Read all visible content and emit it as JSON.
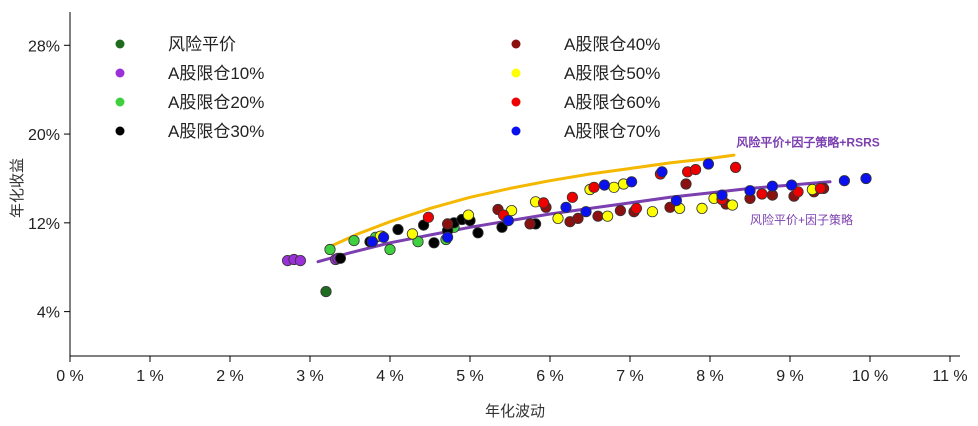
{
  "chart_data": {
    "type": "scatter",
    "xlabel": "年化波动",
    "ylabel": "年化收益",
    "xlim": [
      0,
      11
    ],
    "ylim": [
      0,
      31
    ],
    "x_ticks": [
      0,
      1,
      2,
      3,
      4,
      5,
      6,
      7,
      8,
      9,
      10,
      11
    ],
    "x_tick_labels": [
      "0 %",
      "1 %",
      "2 %",
      "3 %",
      "4 %",
      "5 %",
      "6 %",
      "7 %",
      "8 %",
      "9 %",
      "10 %",
      "11 %"
    ],
    "y_ticks": [
      4,
      12,
      20,
      28
    ],
    "y_tick_labels": [
      "4%",
      "12%",
      "20%",
      "28%"
    ],
    "legend_position": "top",
    "series": [
      {
        "name": "风险平价",
        "color": "#1f6b1f",
        "points": [
          [
            3.2,
            5.8
          ]
        ]
      },
      {
        "name": "A股限仓10%",
        "color": "#9b30d9",
        "points": [
          [
            2.72,
            8.6
          ],
          [
            2.8,
            8.7
          ],
          [
            2.88,
            8.6
          ],
          [
            3.32,
            8.7
          ],
          [
            3.35,
            8.8
          ]
        ]
      },
      {
        "name": "A股限仓20%",
        "color": "#3fcf3f",
        "points": [
          [
            3.25,
            9.6
          ],
          [
            3.55,
            10.4
          ],
          [
            3.82,
            10.7
          ],
          [
            4.0,
            9.6
          ],
          [
            4.35,
            10.3
          ],
          [
            4.7,
            10.5
          ],
          [
            4.8,
            11.6
          ]
        ]
      },
      {
        "name": "A股限仓30%",
        "color": "#000000",
        "points": [
          [
            3.38,
            8.8
          ],
          [
            3.75,
            10.3
          ],
          [
            3.9,
            10.8
          ],
          [
            4.1,
            11.4
          ],
          [
            4.42,
            11.8
          ],
          [
            4.55,
            10.2
          ],
          [
            4.72,
            11.3
          ],
          [
            4.8,
            12.0
          ],
          [
            4.9,
            12.3
          ],
          [
            5.0,
            12.2
          ],
          [
            5.1,
            11.1
          ],
          [
            5.4,
            11.6
          ],
          [
            5.82,
            11.9
          ]
        ]
      },
      {
        "name": "A股限仓40%",
        "color": "#8b1010",
        "points": [
          [
            4.72,
            11.9
          ],
          [
            5.35,
            13.2
          ],
          [
            5.75,
            11.9
          ],
          [
            5.95,
            13.4
          ],
          [
            6.25,
            12.1
          ],
          [
            6.35,
            12.4
          ],
          [
            6.6,
            12.6
          ],
          [
            6.88,
            13.1
          ],
          [
            7.05,
            13.0
          ],
          [
            7.5,
            13.4
          ],
          [
            7.7,
            15.5
          ],
          [
            8.2,
            13.7
          ],
          [
            8.5,
            14.2
          ],
          [
            8.78,
            14.5
          ],
          [
            9.05,
            14.4
          ],
          [
            9.3,
            14.8
          ],
          [
            9.42,
            15.1
          ]
        ]
      },
      {
        "name": "A股限仓50%",
        "color": "#ffff00",
        "points": [
          [
            3.88,
            10.8
          ],
          [
            4.28,
            11.0
          ],
          [
            4.98,
            12.7
          ],
          [
            5.52,
            13.1
          ],
          [
            5.82,
            13.9
          ],
          [
            6.1,
            12.4
          ],
          [
            6.5,
            15.0
          ],
          [
            6.72,
            12.6
          ],
          [
            6.8,
            15.2
          ],
          [
            6.92,
            15.5
          ],
          [
            7.28,
            13.0
          ],
          [
            7.62,
            13.3
          ],
          [
            7.9,
            13.3
          ],
          [
            8.05,
            14.2
          ],
          [
            8.28,
            13.6
          ],
          [
            9.28,
            15.0
          ]
        ]
      },
      {
        "name": "A股限仓60%",
        "color": "#ee0000",
        "points": [
          [
            4.48,
            12.5
          ],
          [
            5.42,
            12.7
          ],
          [
            5.92,
            13.8
          ],
          [
            6.28,
            14.3
          ],
          [
            6.55,
            15.2
          ],
          [
            7.08,
            13.3
          ],
          [
            7.38,
            16.4
          ],
          [
            7.72,
            16.6
          ],
          [
            7.82,
            16.8
          ],
          [
            8.15,
            14.1
          ],
          [
            8.32,
            17.0
          ],
          [
            8.65,
            14.6
          ],
          [
            9.1,
            14.8
          ],
          [
            9.38,
            15.1
          ]
        ]
      },
      {
        "name": "A股限仓70%",
        "color": "#0a10ee",
        "points": [
          [
            3.78,
            10.3
          ],
          [
            3.92,
            10.7
          ],
          [
            4.72,
            10.7
          ],
          [
            5.48,
            12.2
          ],
          [
            6.2,
            13.4
          ],
          [
            6.45,
            13.0
          ],
          [
            6.68,
            15.4
          ],
          [
            7.02,
            15.7
          ],
          [
            7.4,
            16.6
          ],
          [
            7.58,
            14.0
          ],
          [
            7.98,
            17.3
          ],
          [
            8.15,
            14.5
          ],
          [
            8.5,
            14.9
          ],
          [
            8.78,
            15.3
          ],
          [
            9.02,
            15.4
          ],
          [
            9.68,
            15.8
          ],
          [
            9.95,
            16.0
          ]
        ]
      }
    ],
    "curves": [
      {
        "name": "风险平价+因子策略+RSRS",
        "color": "#f5b800",
        "points": [
          [
            3.2,
            9.7
          ],
          [
            3.6,
            11.0
          ],
          [
            4.0,
            12.1
          ],
          [
            4.5,
            13.3
          ],
          [
            5.0,
            14.3
          ],
          [
            5.5,
            15.1
          ],
          [
            6.0,
            15.8
          ],
          [
            6.5,
            16.4
          ],
          [
            7.0,
            16.9
          ],
          [
            7.5,
            17.4
          ],
          [
            8.0,
            17.8
          ],
          [
            8.3,
            18.1
          ]
        ]
      },
      {
        "name": "风险平价+因子策略",
        "color": "#7b3fb0",
        "points": [
          [
            3.1,
            8.5
          ],
          [
            3.5,
            9.3
          ],
          [
            4.0,
            10.2
          ],
          [
            4.5,
            10.9
          ],
          [
            5.0,
            11.6
          ],
          [
            5.5,
            12.2
          ],
          [
            6.0,
            12.8
          ],
          [
            6.5,
            13.3
          ],
          [
            7.0,
            13.8
          ],
          [
            7.5,
            14.3
          ],
          [
            8.0,
            14.7
          ],
          [
            8.5,
            15.1
          ],
          [
            9.0,
            15.4
          ],
          [
            9.5,
            15.7
          ]
        ]
      }
    ],
    "annotations": [
      {
        "text": "风险平价+因子策略+RSRS",
        "anchor": [
          8.33,
          18.9
        ],
        "color": "#7b3fb0",
        "bold": true
      },
      {
        "text": "风险平价+因子策略",
        "anchor": [
          8.5,
          11.9
        ],
        "color": "#7b3fb0",
        "bold": false
      }
    ]
  }
}
